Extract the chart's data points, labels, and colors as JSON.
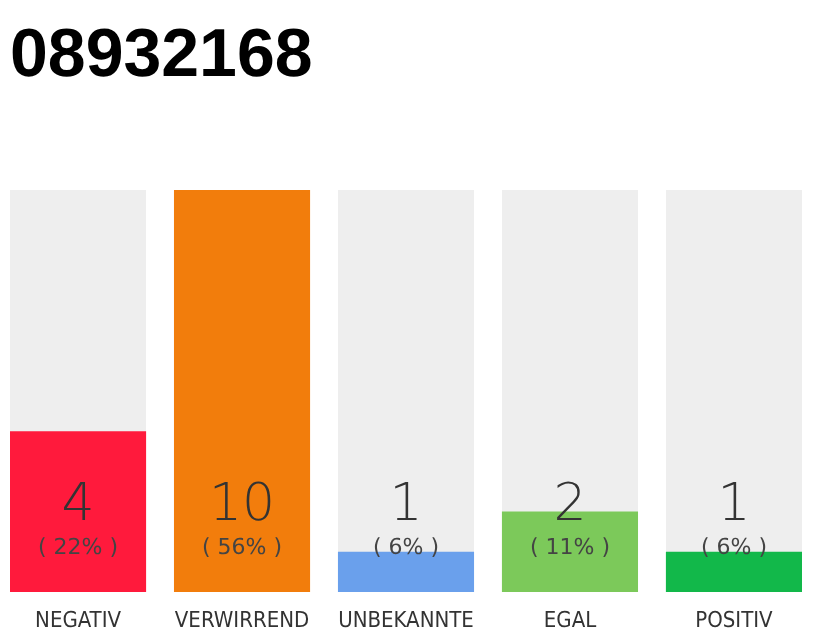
{
  "chart_data": {
    "type": "bar",
    "title": "08932168",
    "categories": [
      "NEGATIV",
      "VERWIRREND",
      "UNBEKANNTE",
      "EGAL",
      "POSITIV"
    ],
    "values": [
      4,
      10,
      1,
      2,
      1
    ],
    "colors": [
      "#ff1a3c",
      "#f27d0c",
      "#6aa0ec",
      "#7cc95a",
      "#12b84a"
    ],
    "data_labels": true,
    "annotations": [
      "( 22% )",
      "( 56% )",
      "( 6% )",
      "( 11% )",
      "( 6% )"
    ],
    "ylim": [
      0,
      10
    ]
  }
}
